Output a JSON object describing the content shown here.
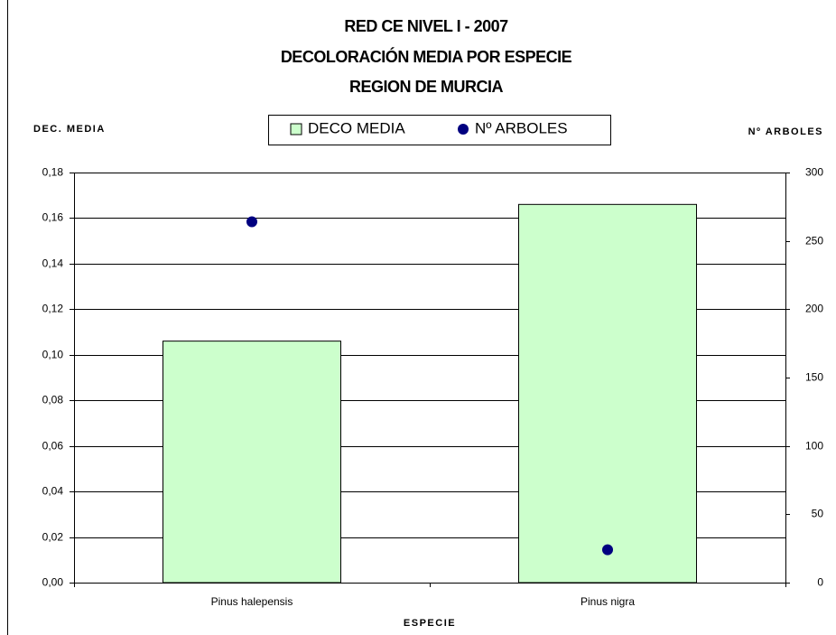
{
  "chart_data": {
    "type": "bar",
    "title": [
      "RED CE NIVEL I - 2007",
      "DECOLORACIÓN MEDIA POR ESPECIE",
      "REGION DE MURCIA"
    ],
    "y_label": "DEC. MEDIA",
    "y2_label": "Nº ARBOLES",
    "x_label": "ESPECIE",
    "categories": [
      "Pinus halepensis",
      "Pinus nigra"
    ],
    "series": [
      {
        "name": "DECO MEDIA",
        "type": "bar",
        "color": "#ccffcc",
        "values": [
          0.106,
          0.166
        ]
      },
      {
        "name": "Nº ARBOLES",
        "type": "scatter",
        "color": "#000080",
        "axis": "y2",
        "values": [
          264,
          24
        ]
      }
    ],
    "ylim": [
      0,
      0.18
    ],
    "yticks": [
      {
        "value": 0,
        "label": "0,00"
      },
      {
        "value": 0.02,
        "label": "0,02"
      },
      {
        "value": 0.04,
        "label": "0,04"
      },
      {
        "value": 0.06,
        "label": "0,06"
      },
      {
        "value": 0.08,
        "label": "0,08"
      },
      {
        "value": 0.1,
        "label": "0,10"
      },
      {
        "value": 0.12,
        "label": "0,12"
      },
      {
        "value": 0.14,
        "label": "0,14"
      },
      {
        "value": 0.16,
        "label": "0,16"
      },
      {
        "value": 0.18,
        "label": "0,18"
      }
    ],
    "y2lim": [
      0,
      300
    ],
    "y2ticks": [
      0,
      50,
      100,
      150,
      200,
      250,
      300
    ],
    "grid": true,
    "legend": "top"
  }
}
